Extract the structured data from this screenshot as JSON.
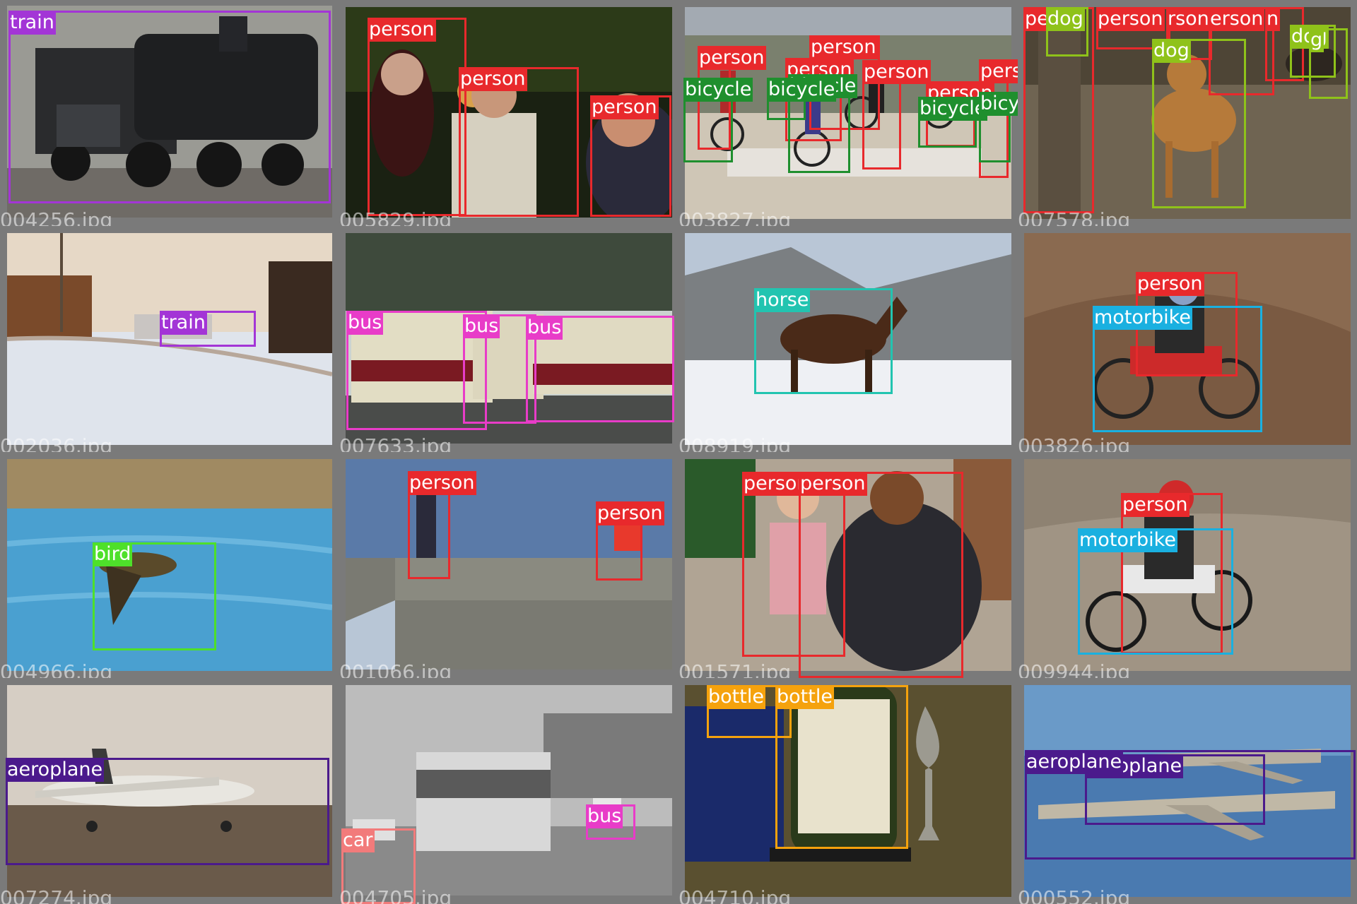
{
  "class_colors": {
    "train": "#a335d6",
    "person": "#e8292c",
    "bicycle": "#1f8f2e",
    "dog": "#8fc21a",
    "bus": "#e83cc8",
    "horse": "#22c4b0",
    "motorbike": "#1ab0e0",
    "bird": "#4ee02a",
    "aeroplane": "#4b1a8c",
    "car": "#f27b7b",
    "bottle": "#f5a20d"
  },
  "tiles": [
    {
      "file": "004256.jpg",
      "scene": "steam-locomotive",
      "labels": [
        "train"
      ]
    },
    {
      "file": "005829.jpg",
      "scene": "bar-people",
      "labels": [
        "person",
        "person",
        "person"
      ]
    },
    {
      "file": "003827.jpg",
      "scene": "cyclocross-race",
      "labels": [
        "person",
        "bicycle",
        "person",
        "person",
        "bicycle",
        "person",
        "bicycle",
        "person",
        "bicycle",
        "person",
        "bicycle"
      ]
    },
    {
      "file": "007578.jpg",
      "scene": "dog-show",
      "labels": [
        "pe",
        "dog",
        "person",
        "rson",
        "erson",
        "n",
        "dog",
        "dog",
        "g"
      ]
    },
    {
      "file": "002036.jpg",
      "scene": "snowy-railway",
      "labels": [
        "train"
      ]
    },
    {
      "file": "007633.jpg",
      "scene": "buses-in-forest",
      "labels": [
        "bus",
        "bus",
        "bus"
      ]
    },
    {
      "file": "008919.jpg",
      "scene": "horse-in-snow",
      "labels": [
        "horse"
      ]
    },
    {
      "file": "003826.jpg",
      "scene": "motocross-kid",
      "labels": [
        "person",
        "motorbike"
      ]
    },
    {
      "file": "004966.jpg",
      "scene": "hawk-over-water",
      "labels": [
        "bird"
      ]
    },
    {
      "file": "001066.jpg",
      "scene": "pier-fishermen",
      "labels": [
        "person",
        "person"
      ]
    },
    {
      "file": "001571.jpg",
      "scene": "children-dancing",
      "labels": [
        "person",
        "person"
      ]
    },
    {
      "file": "009944.jpg",
      "scene": "motocross-rider",
      "labels": [
        "person",
        "motorbike"
      ]
    },
    {
      "file": "007274.jpg",
      "scene": "parked-plane",
      "labels": [
        "aeroplane"
      ]
    },
    {
      "file": "004705.jpg",
      "scene": "tram-street",
      "labels": [
        "car",
        "bus"
      ]
    },
    {
      "file": "004710.jpg",
      "scene": "wine-bottle",
      "labels": [
        "bottle",
        "bottle"
      ]
    },
    {
      "file": "000552.jpg",
      "scene": "navy-jets",
      "labels": [
        "aeroplane",
        "aeroplane"
      ]
    }
  ]
}
